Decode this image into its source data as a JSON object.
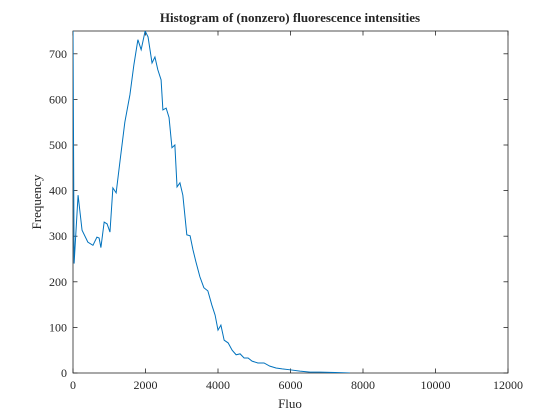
{
  "chart_data": {
    "type": "line",
    "title": "Histogram of (nonzero) fluorescence intensities",
    "xlabel": "Fluo",
    "ylabel": "Frequency",
    "x": [
      0,
      30,
      140,
      250,
      410,
      550,
      660,
      720,
      770,
      860,
      940,
      1020,
      1100,
      1190,
      1300,
      1430,
      1570,
      1680,
      1790,
      1880,
      1990,
      2070,
      2180,
      2260,
      2340,
      2430,
      2480,
      2570,
      2650,
      2730,
      2810,
      2870,
      2950,
      3030,
      3140,
      3230,
      3310,
      3390,
      3500,
      3610,
      3720,
      3830,
      3920,
      4000,
      4080,
      4170,
      4280,
      4390,
      4500,
      4610,
      4720,
      4830,
      4940,
      5100,
      5270,
      5430,
      5600,
      5770,
      5990,
      6260,
      6540,
      6810,
      7230,
      7640
    ],
    "series": [
      {
        "name": "Frequency",
        "color": "#0072bd",
        "values": [
          760,
          240,
          390,
          313,
          287,
          280,
          298,
          296,
          275,
          331,
          327,
          309,
          406,
          395,
          467,
          550,
          610,
          676,
          731,
          709,
          750,
          737,
          680,
          693,
          665,
          643,
          577,
          581,
          560,
          494,
          500,
          408,
          417,
          390,
          303,
          301,
          270,
          244,
          211,
          187,
          180,
          149,
          127,
          94,
          105,
          72,
          66,
          50,
          40,
          42,
          33,
          33,
          26,
          22,
          22,
          15,
          11,
          9,
          7,
          4,
          2,
          2,
          1,
          0
        ]
      }
    ],
    "xlim": [
      0,
      12000
    ],
    "xticks": [
      0,
      2000,
      4000,
      6000,
      8000,
      10000,
      12000
    ],
    "ylim": [
      0,
      750
    ],
    "yticks": [
      0,
      100,
      200,
      300,
      400,
      500,
      600,
      700
    ]
  }
}
